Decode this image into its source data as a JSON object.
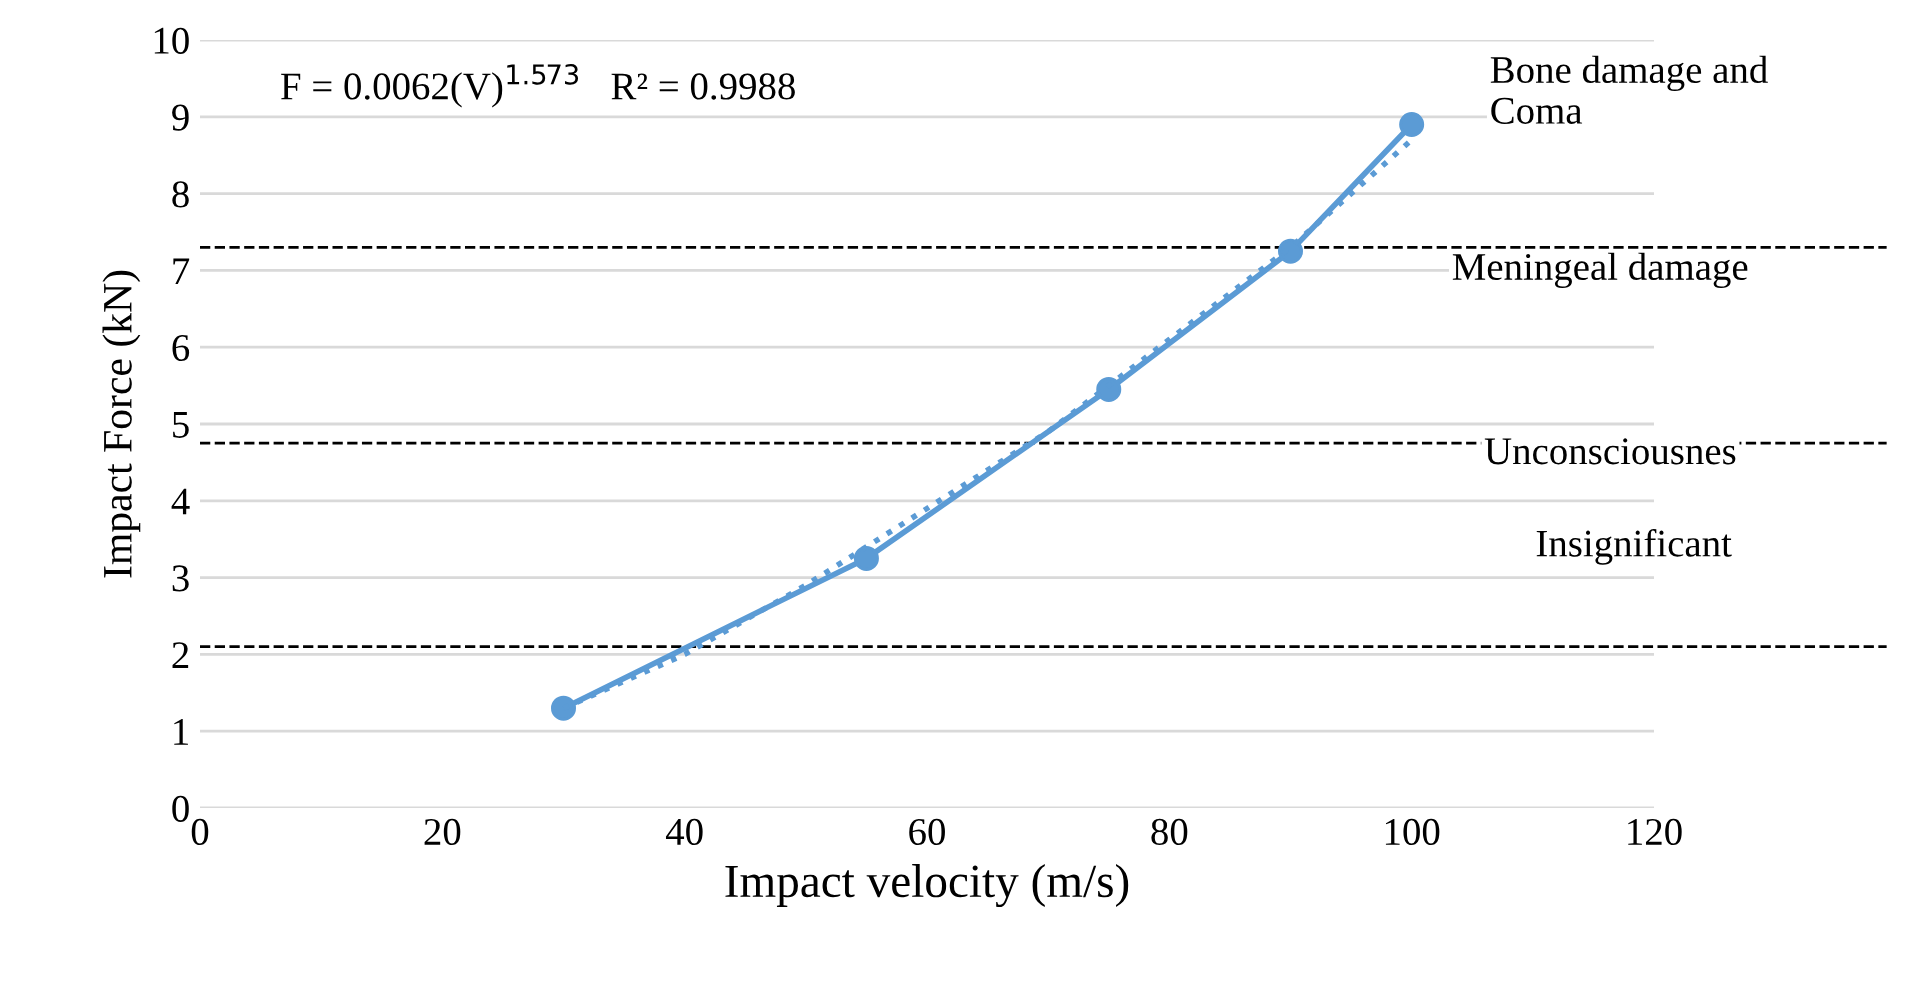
{
  "chart_data": {
    "type": "line",
    "xlabel": "Impact velocity (m/s)",
    "ylabel": "Impact Force (kN)",
    "xlim": [
      0,
      120
    ],
    "xticks": [
      0,
      20,
      40,
      60,
      80,
      100,
      120
    ],
    "ylim": [
      0,
      10
    ],
    "yticks": [
      0,
      1,
      2,
      3,
      4,
      5,
      6,
      7,
      8,
      9,
      10
    ],
    "grid": "y",
    "series": [
      {
        "color": "#5b9bd5",
        "x": [
          30,
          55,
          75,
          90,
          100
        ],
        "values": [
          1.3,
          3.25,
          5.45,
          7.25,
          8.9
        ],
        "marker": "circle",
        "line_style": "solid"
      },
      {
        "color": "#5b9bd5",
        "x": [
          30,
          40,
          50,
          60,
          70,
          80,
          90,
          100
        ],
        "values": [
          1.3,
          2.0,
          2.9,
          3.9,
          4.9,
          6.1,
          7.3,
          8.7
        ],
        "marker": "none",
        "line_style": "dotted"
      }
    ],
    "ref_lines": [
      {
        "axis": "y",
        "value": 7.3,
        "color": "#000000",
        "line_style": "dashed"
      },
      {
        "axis": "y",
        "value": 4.75,
        "color": "#000000",
        "line_style": "dashed"
      },
      {
        "axis": "y",
        "value": 2.1,
        "color": "#000000",
        "line_style": "dashed"
      }
    ],
    "annotations": [
      "F = 0.0062(V)$^{1.573}$   R² = 0.9988",
      "Bone damage and\nComa",
      "Meningeal damage",
      "Unconsciousnes",
      "Insignificant"
    ]
  }
}
